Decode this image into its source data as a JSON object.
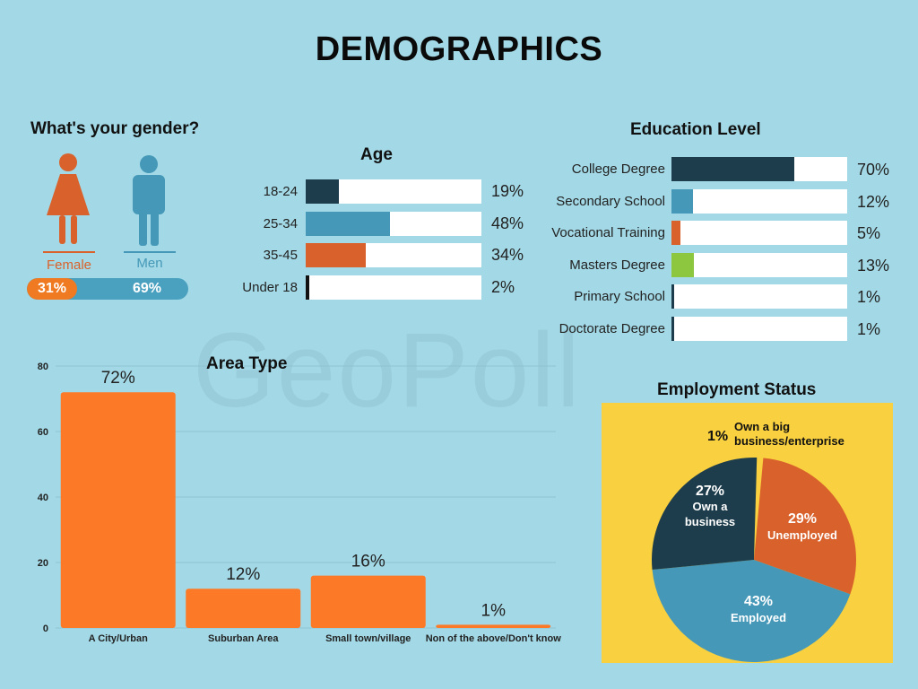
{
  "page": {
    "title": "DEMOGRAPHICS",
    "watermark": "GeoPoll"
  },
  "colors": {
    "background": "#a3d9e6",
    "dark_teal": "#1e3d4c",
    "blue": "#4598b8",
    "orange": "#d9612b",
    "bright_orange": "#fc7a27",
    "green": "#8dc63f",
    "yellow": "#f9d03f"
  },
  "icons": {
    "female": "female-person-icon",
    "male": "male-person-icon"
  },
  "chart_data": [
    {
      "id": "gender",
      "type": "bar",
      "title": "What's your gender?",
      "categories": [
        "Female",
        "Men"
      ],
      "values": [
        31,
        69
      ],
      "labels": [
        "31%",
        "69%"
      ]
    },
    {
      "id": "age",
      "type": "bar",
      "orientation": "horizontal",
      "title": "Age",
      "categories": [
        "18-24",
        "25-34",
        "35-45",
        "Under 18"
      ],
      "values": [
        19,
        48,
        34,
        2
      ],
      "labels": [
        "19%",
        "48%",
        "34%",
        "2%"
      ],
      "colors": [
        "#1e3d4c",
        "#4598b8",
        "#d9612b",
        "#111111"
      ],
      "xlim": [
        0,
        100
      ]
    },
    {
      "id": "education",
      "type": "bar",
      "orientation": "horizontal",
      "title": "Education Level",
      "categories": [
        "College Degree",
        "Secondary School",
        "Vocational Training",
        "Masters Degree",
        "Primary School",
        "Doctorate Degree"
      ],
      "values": [
        70,
        12,
        5,
        13,
        1,
        1
      ],
      "labels": [
        "70%",
        "12%",
        "5%",
        "13%",
        "1%",
        "1%"
      ],
      "colors": [
        "#1e3d4c",
        "#4598b8",
        "#d9612b",
        "#8dc63f",
        "#1e3d4c",
        "#1e3d4c"
      ],
      "xlim": [
        0,
        100
      ]
    },
    {
      "id": "area",
      "type": "bar",
      "title": "Area Type",
      "categories": [
        "A City/Urban",
        "Suburban Area",
        "Small town/village",
        "Non of the above/Don't know"
      ],
      "values": [
        72,
        12,
        16,
        1
      ],
      "labels": [
        "72%",
        "12%",
        "16%",
        "1%"
      ],
      "ylim": [
        0,
        80
      ],
      "yticks": [
        0,
        20,
        40,
        60,
        80
      ],
      "grid": true
    },
    {
      "id": "employment",
      "type": "pie",
      "title": "Employment Status",
      "slices": [
        {
          "name": "Own a big business/enterprise",
          "value": 1,
          "label": "1%",
          "color": "#f9d03f"
        },
        {
          "name": "Unemployed",
          "value": 29,
          "label": "29%",
          "color": "#d9612b"
        },
        {
          "name": "Employed",
          "value": 43,
          "label": "43%",
          "color": "#4598b8"
        },
        {
          "name": "Own a business",
          "value": 27,
          "label": "27%",
          "color": "#1e3d4c"
        }
      ]
    }
  ]
}
